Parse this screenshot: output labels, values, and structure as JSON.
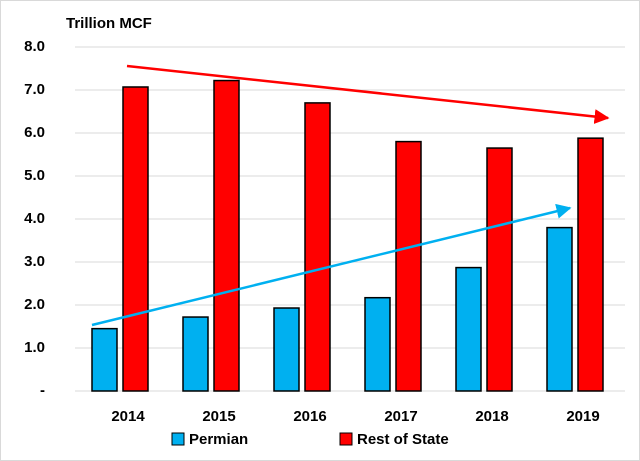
{
  "chart_data": {
    "type": "bar",
    "y_label": "Trillion MCF",
    "categories": [
      "2014",
      "2015",
      "2016",
      "2017",
      "2018",
      "2019"
    ],
    "series": [
      {
        "name": "Permian",
        "color": "#00b0f0",
        "values": [
          1.45,
          1.72,
          1.93,
          2.17,
          2.87,
          3.8
        ]
      },
      {
        "name": "Rest of State",
        "color": "#ff0000",
        "values": [
          7.07,
          7.22,
          6.7,
          5.8,
          5.65,
          5.88
        ]
      }
    ],
    "ylim": [
      0,
      8
    ],
    "yticks": [
      {
        "value": 0,
        "label": "-"
      },
      {
        "value": 1,
        "label": "1.0"
      },
      {
        "value": 2,
        "label": "2.0"
      },
      {
        "value": 3,
        "label": "3.0"
      },
      {
        "value": 4,
        "label": "4.0"
      },
      {
        "value": 5,
        "label": "5.0"
      },
      {
        "value": 6,
        "label": "6.0"
      },
      {
        "value": 7,
        "label": "7.0"
      },
      {
        "value": 8,
        "label": "8.0"
      }
    ],
    "grid": true,
    "legend": "bottom"
  }
}
